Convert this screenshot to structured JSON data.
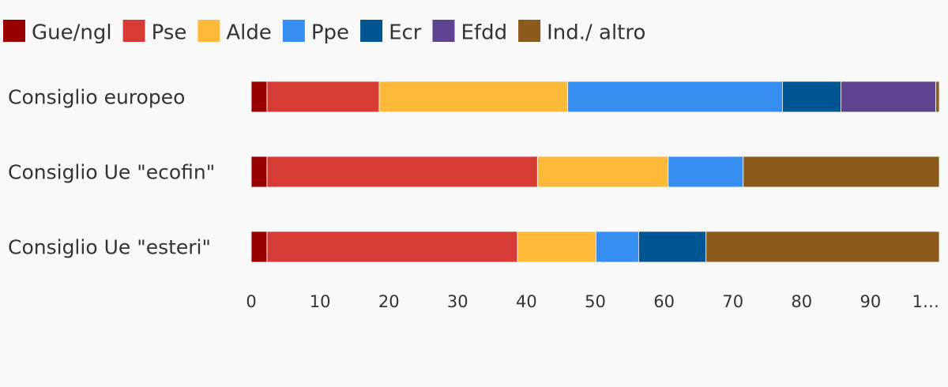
{
  "chart_data": {
    "type": "stacked-bar-horizontal",
    "categories": [
      "Consiglio europeo",
      "Consiglio Ue \"ecofin\"",
      "Consiglio Ue \"esteri\""
    ],
    "series": [
      {
        "name": "Gue/ngl",
        "color": "#990000",
        "values": [
          2.3,
          2.3,
          2.3
        ]
      },
      {
        "name": "Pse",
        "color": "#d63b35",
        "values": [
          16.3,
          39.3,
          36.4
        ]
      },
      {
        "name": "Alde",
        "color": "#ffb938",
        "values": [
          27.4,
          19.0,
          11.4
        ]
      },
      {
        "name": "Ppe",
        "color": "#368ef0",
        "values": [
          31.2,
          10.9,
          6.2
        ]
      },
      {
        "name": "Ecr",
        "color": "#005593",
        "values": [
          8.5,
          0,
          9.8
        ]
      },
      {
        "name": "Efdd",
        "color": "#5e4490",
        "values": [
          13.8,
          0,
          0
        ]
      },
      {
        "name": "Ind./ altro",
        "color": "#8c5a1a",
        "values": [
          0.5,
          28.5,
          33.9
        ]
      }
    ],
    "xlim": [
      0,
      100
    ],
    "xticks": [
      0,
      10,
      20,
      30,
      40,
      50,
      60,
      70,
      80,
      90,
      {
        "value": 100,
        "label": "1…"
      }
    ],
    "legend": "top-left"
  }
}
